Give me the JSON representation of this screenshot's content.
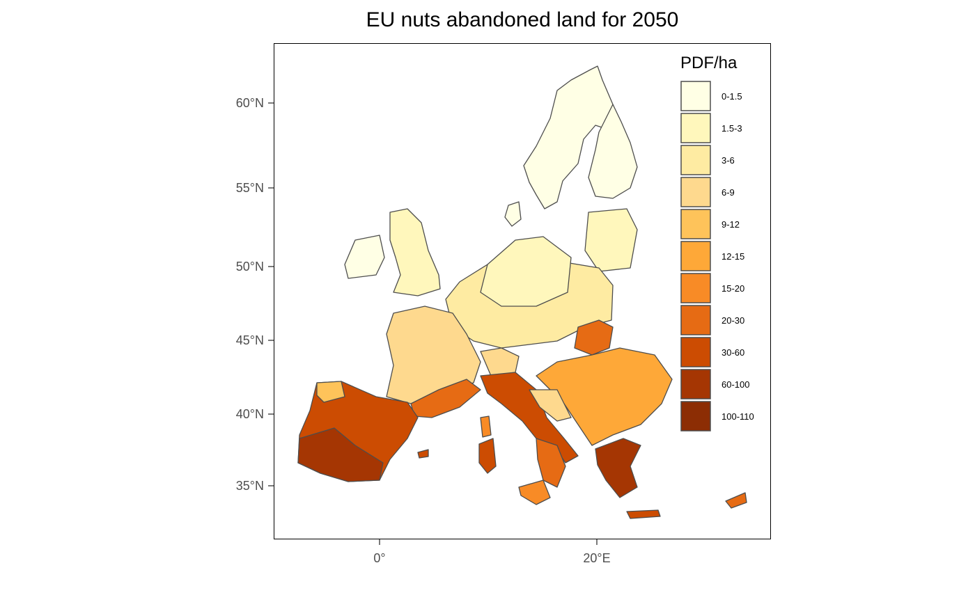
{
  "title": "EU nuts abandoned land for 2050",
  "chart_data": {
    "type": "choropleth",
    "projection": "lat-lon",
    "title": "EU nuts abandoned land for 2050",
    "x_ticks": [
      {
        "value": 0,
        "label": "0°"
      },
      {
        "value": 20,
        "label": "20°E"
      }
    ],
    "y_ticks": [
      {
        "value": 35,
        "label": "35°N"
      },
      {
        "value": 40,
        "label": "40°N"
      },
      {
        "value": 45,
        "label": "45°N"
      },
      {
        "value": 50,
        "label": "50°N"
      },
      {
        "value": 55,
        "label": "55°N"
      },
      {
        "value": 60,
        "label": "60°N"
      }
    ],
    "legend": {
      "title": "PDF/ha",
      "position": "top-right",
      "items": [
        {
          "label": "0-1.5",
          "color": "#FFFFE5"
        },
        {
          "label": "1.5-3",
          "color": "#FFF7BC"
        },
        {
          "label": "3-6",
          "color": "#FEEBA2"
        },
        {
          "label": "6-9",
          "color": "#FED98E"
        },
        {
          "label": "9-12",
          "color": "#FEC35A"
        },
        {
          "label": "12-15",
          "color": "#FEA838"
        },
        {
          "label": "15-20",
          "color": "#F88B26"
        },
        {
          "label": "20-30",
          "color": "#E66B14"
        },
        {
          "label": "30-60",
          "color": "#CC4C02"
        },
        {
          "label": "60-100",
          "color": "#A53603"
        },
        {
          "label": "100-110",
          "color": "#8C2D04"
        }
      ]
    },
    "border_color": "#4d4d4d",
    "grid": false
  }
}
